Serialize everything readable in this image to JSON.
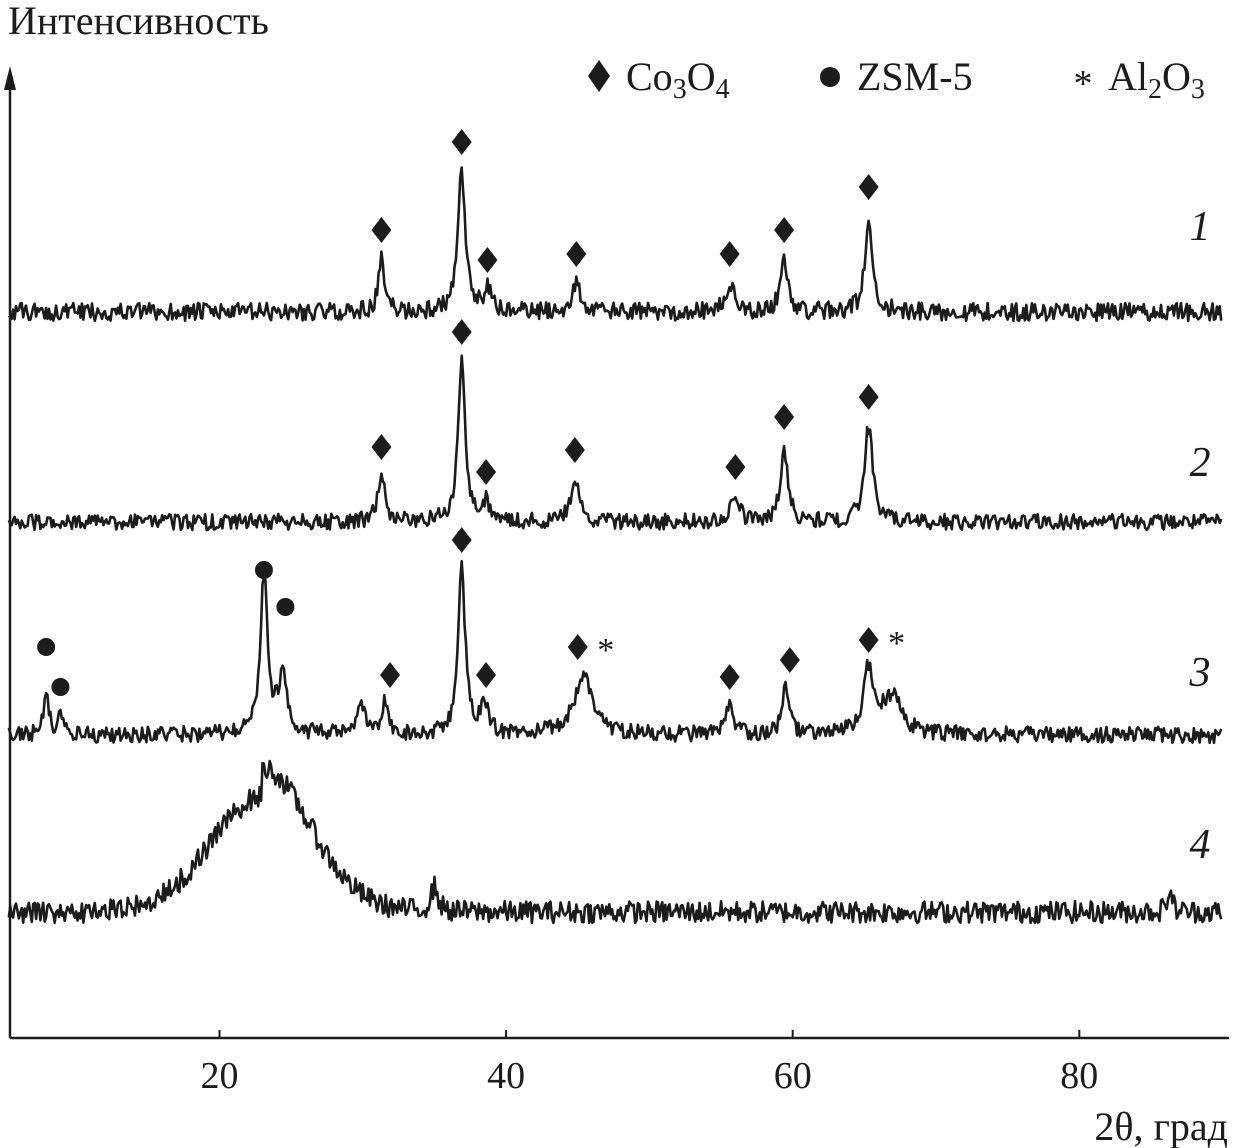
{
  "chart_data": {
    "type": "line",
    "title": "",
    "ylabel": "Интенсивность",
    "xlabel": "2θ, град",
    "xlim": [
      5,
      90
    ],
    "xticks": [
      20,
      40,
      60,
      80
    ],
    "y_ticks_shown": false,
    "grid": false,
    "legend_position": "top-right",
    "legend": [
      {
        "symbol": "diamond",
        "label_main": "Co",
        "sub1": "3",
        "label_mid": "O",
        "sub2": "4",
        "text": "Co3O4"
      },
      {
        "symbol": "circle",
        "label_main": "ZSM-5",
        "text": "ZSM-5"
      },
      {
        "symbol": "asterisk",
        "label_main": "Al",
        "sub1": "2",
        "label_mid": "O",
        "sub2": "3",
        "text": "Al2O3"
      }
    ],
    "series": [
      {
        "name": "1",
        "baseline": 0,
        "noise": 9,
        "peaks": [
          {
            "x": 31.3,
            "height": 52,
            "width": 0.25
          },
          {
            "x": 36.9,
            "height": 140,
            "width": 0.3
          },
          {
            "x": 38.7,
            "height": 22,
            "width": 0.3
          },
          {
            "x": 44.9,
            "height": 28,
            "width": 0.35
          },
          {
            "x": 55.6,
            "height": 28,
            "width": 0.35
          },
          {
            "x": 59.4,
            "height": 52,
            "width": 0.3
          },
          {
            "x": 65.3,
            "height": 95,
            "width": 0.3
          }
        ],
        "markers": [
          {
            "x": 31.3,
            "symbol": "diamond"
          },
          {
            "x": 36.9,
            "symbol": "diamond"
          },
          {
            "x": 38.7,
            "symbol": "diamond"
          },
          {
            "x": 44.9,
            "symbol": "diamond"
          },
          {
            "x": 55.6,
            "symbol": "diamond"
          },
          {
            "x": 59.4,
            "symbol": "diamond"
          },
          {
            "x": 65.3,
            "symbol": "diamond"
          }
        ]
      },
      {
        "name": "2",
        "baseline": 0,
        "noise": 8,
        "peaks": [
          {
            "x": 31.3,
            "height": 45,
            "width": 0.3
          },
          {
            "x": 36.9,
            "height": 160,
            "width": 0.3
          },
          {
            "x": 38.6,
            "height": 20,
            "width": 0.3
          },
          {
            "x": 44.8,
            "height": 42,
            "width": 0.35
          },
          {
            "x": 56.0,
            "height": 25,
            "width": 0.35
          },
          {
            "x": 59.4,
            "height": 75,
            "width": 0.3
          },
          {
            "x": 65.3,
            "height": 95,
            "width": 0.35
          }
        ],
        "markers": [
          {
            "x": 31.3,
            "symbol": "diamond"
          },
          {
            "x": 36.9,
            "symbol": "diamond"
          },
          {
            "x": 38.6,
            "symbol": "diamond"
          },
          {
            "x": 44.8,
            "symbol": "diamond"
          },
          {
            "x": 56.0,
            "symbol": "diamond"
          },
          {
            "x": 59.4,
            "symbol": "diamond"
          },
          {
            "x": 65.3,
            "symbol": "diamond"
          }
        ]
      },
      {
        "name": "3",
        "baseline": 0,
        "noise": 8,
        "peaks": [
          {
            "x": 7.9,
            "height": 45,
            "width": 0.2
          },
          {
            "x": 8.9,
            "height": 20,
            "width": 0.2
          },
          {
            "x": 23.1,
            "height": 160,
            "width": 0.3
          },
          {
            "x": 24.4,
            "height": 55,
            "width": 0.4
          },
          {
            "x": 29.9,
            "height": 28,
            "width": 0.3
          },
          {
            "x": 31.5,
            "height": 30,
            "width": 0.3
          },
          {
            "x": 36.9,
            "height": 165,
            "width": 0.3
          },
          {
            "x": 38.5,
            "height": 30,
            "width": 0.3
          },
          {
            "x": 45.4,
            "height": 58,
            "width": 0.8
          },
          {
            "x": 55.6,
            "height": 28,
            "width": 0.3
          },
          {
            "x": 59.5,
            "height": 45,
            "width": 0.3
          },
          {
            "x": 65.3,
            "height": 65,
            "width": 0.4
          },
          {
            "x": 66.9,
            "height": 38,
            "width": 0.8
          }
        ],
        "markers": [
          {
            "x": 7.9,
            "symbol": "circle",
            "level": "high"
          },
          {
            "x": 8.9,
            "symbol": "circle",
            "level": "low"
          },
          {
            "x": 23.1,
            "symbol": "circle",
            "level": "top"
          },
          {
            "x": 24.6,
            "symbol": "circle",
            "level": "mid"
          },
          {
            "x": 31.9,
            "symbol": "diamond"
          },
          {
            "x": 36.9,
            "symbol": "diamond"
          },
          {
            "x": 38.6,
            "symbol": "diamond"
          },
          {
            "x": 45.0,
            "symbol": "diamond-asterisk"
          },
          {
            "x": 55.6,
            "symbol": "diamond"
          },
          {
            "x": 59.8,
            "symbol": "diamond"
          },
          {
            "x": 65.3,
            "symbol": "diamond-asterisk"
          }
        ]
      },
      {
        "name": "4",
        "baseline": 0,
        "noise": 11,
        "broad_hump": {
          "x": 23.0,
          "height": 115,
          "width": 4.8
        },
        "peaks": [
          {
            "x": 35.0,
            "height": 25,
            "width": 0.3
          },
          {
            "x": 86.3,
            "height": 22,
            "width": 0.2
          }
        ],
        "markers": []
      }
    ]
  },
  "curve_labels": [
    "1",
    "2",
    "3",
    "4"
  ],
  "x_tick_labels": [
    "20",
    "40",
    "60",
    "80"
  ]
}
